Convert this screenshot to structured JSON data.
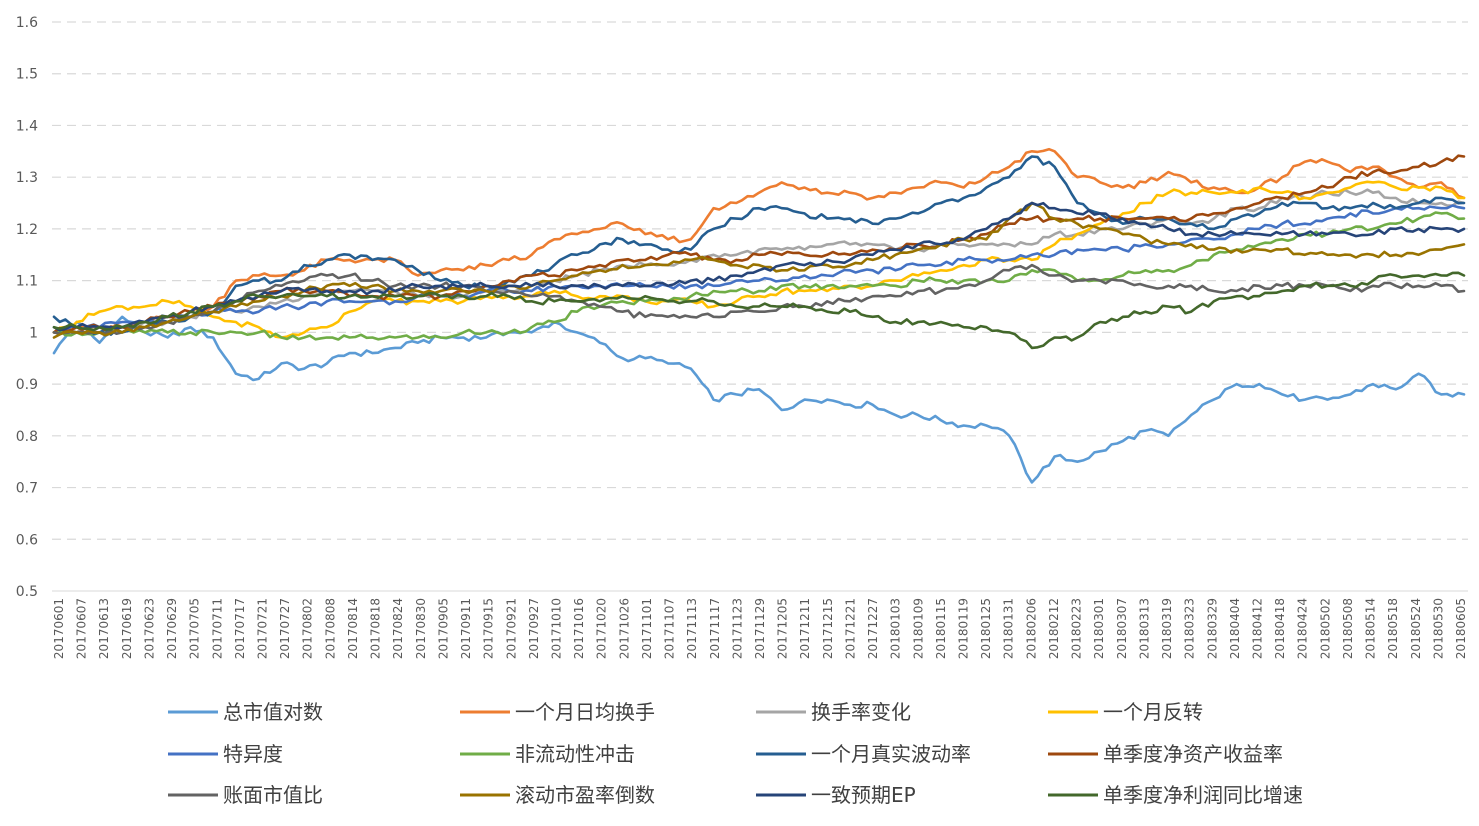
{
  "chart_data": {
    "type": "line",
    "title": "",
    "xlabel": "",
    "ylabel": "",
    "ylim": [
      0.5,
      1.6
    ],
    "yticks": [
      "0.5",
      "0.6",
      "0.7",
      "0.8",
      "0.9",
      "1",
      "1.1",
      "1.2",
      "1.3",
      "1.4",
      "1.5",
      "1.6"
    ],
    "grid": true,
    "legend_position": "bottom",
    "x_tick_labels": [
      "20170601",
      "20170607",
      "20170613",
      "20170619",
      "20170623",
      "20170629",
      "20170705",
      "20170711",
      "20170717",
      "20170721",
      "20170727",
      "20170802",
      "20170808",
      "20170814",
      "20170818",
      "20170824",
      "20170830",
      "20170905",
      "20170911",
      "20170915",
      "20170921",
      "20170927",
      "20171010",
      "20171016",
      "20171020",
      "20171026",
      "20171101",
      "20171107",
      "20171113",
      "20171117",
      "20171123",
      "20171129",
      "20171205",
      "20171211",
      "20171215",
      "20171221",
      "20171227",
      "20180103",
      "20180109",
      "20180115",
      "20180119",
      "20180125",
      "20180131",
      "20180206",
      "20180212",
      "20180223",
      "20180301",
      "20180307",
      "20180313",
      "20180319",
      "20180323",
      "20180329",
      "20180404",
      "20180412",
      "20180418",
      "20180424",
      "20180502",
      "20180508",
      "20180514",
      "20180518",
      "20180524",
      "20180530",
      "20180605"
    ],
    "series": [
      {
        "name": "总市值对数",
        "color": "#5B9BD5",
        "values": [
          0.96,
          1.02,
          0.98,
          1.03,
          1.0,
          0.99,
          1.01,
          0.99,
          0.92,
          0.91,
          0.94,
          0.93,
          0.94,
          0.96,
          0.96,
          0.97,
          0.98,
          0.99,
          0.99,
          0.99,
          1.0,
          1.0,
          1.02,
          1.0,
          0.98,
          0.95,
          0.95,
          0.94,
          0.93,
          0.87,
          0.88,
          0.89,
          0.85,
          0.87,
          0.87,
          0.86,
          0.86,
          0.84,
          0.84,
          0.83,
          0.82,
          0.82,
          0.8,
          0.71,
          0.76,
          0.75,
          0.77,
          0.79,
          0.81,
          0.8,
          0.84,
          0.87,
          0.9,
          0.9,
          0.88,
          0.87,
          0.87,
          0.88,
          0.9,
          0.89,
          0.92,
          0.88,
          0.88
        ]
      },
      {
        "name": "一个月日均换手",
        "color": "#ED7D31",
        "values": [
          1.0,
          1.01,
          1.01,
          1.01,
          1.02,
          1.03,
          1.04,
          1.05,
          1.1,
          1.11,
          1.11,
          1.12,
          1.14,
          1.14,
          1.14,
          1.14,
          1.11,
          1.12,
          1.12,
          1.13,
          1.14,
          1.15,
          1.18,
          1.19,
          1.2,
          1.21,
          1.19,
          1.18,
          1.18,
          1.24,
          1.25,
          1.27,
          1.29,
          1.28,
          1.27,
          1.27,
          1.26,
          1.27,
          1.28,
          1.29,
          1.28,
          1.3,
          1.32,
          1.35,
          1.35,
          1.3,
          1.29,
          1.28,
          1.29,
          1.31,
          1.29,
          1.28,
          1.27,
          1.28,
          1.3,
          1.33,
          1.33,
          1.31,
          1.32,
          1.3,
          1.28,
          1.29,
          1.26
        ]
      },
      {
        "name": "换手率变化",
        "color": "#A5A5A5",
        "values": [
          1.0,
          1.0,
          1.01,
          1.01,
          1.02,
          1.02,
          1.03,
          1.04,
          1.04,
          1.05,
          1.06,
          1.07,
          1.08,
          1.08,
          1.08,
          1.08,
          1.07,
          1.07,
          1.07,
          1.08,
          1.08,
          1.08,
          1.1,
          1.11,
          1.12,
          1.13,
          1.13,
          1.13,
          1.14,
          1.15,
          1.15,
          1.16,
          1.16,
          1.16,
          1.17,
          1.17,
          1.17,
          1.16,
          1.16,
          1.17,
          1.17,
          1.17,
          1.17,
          1.17,
          1.19,
          1.19,
          1.2,
          1.2,
          1.21,
          1.22,
          1.21,
          1.22,
          1.24,
          1.24,
          1.26,
          1.26,
          1.27,
          1.27,
          1.27,
          1.26,
          1.25,
          1.25,
          1.25
        ]
      },
      {
        "name": "一个月反转",
        "color": "#FFC000",
        "values": [
          1.0,
          1.02,
          1.04,
          1.05,
          1.05,
          1.06,
          1.05,
          1.03,
          1.02,
          1.01,
          0.99,
          1.0,
          1.01,
          1.04,
          1.06,
          1.06,
          1.06,
          1.06,
          1.06,
          1.07,
          1.07,
          1.07,
          1.08,
          1.07,
          1.07,
          1.07,
          1.06,
          1.06,
          1.06,
          1.05,
          1.06,
          1.07,
          1.08,
          1.08,
          1.08,
          1.09,
          1.09,
          1.1,
          1.11,
          1.12,
          1.13,
          1.14,
          1.14,
          1.14,
          1.17,
          1.19,
          1.21,
          1.23,
          1.25,
          1.27,
          1.27,
          1.27,
          1.27,
          1.28,
          1.27,
          1.26,
          1.27,
          1.28,
          1.29,
          1.28,
          1.28,
          1.28,
          1.26
        ]
      },
      {
        "name": "特异度",
        "color": "#4472C4",
        "values": [
          1.0,
          1.01,
          1.01,
          1.02,
          1.02,
          1.03,
          1.03,
          1.04,
          1.04,
          1.04,
          1.05,
          1.05,
          1.06,
          1.06,
          1.06,
          1.06,
          1.07,
          1.07,
          1.07,
          1.08,
          1.08,
          1.08,
          1.09,
          1.09,
          1.09,
          1.09,
          1.09,
          1.09,
          1.09,
          1.09,
          1.1,
          1.1,
          1.1,
          1.11,
          1.11,
          1.12,
          1.12,
          1.12,
          1.13,
          1.13,
          1.14,
          1.14,
          1.14,
          1.15,
          1.15,
          1.16,
          1.16,
          1.16,
          1.17,
          1.17,
          1.18,
          1.18,
          1.19,
          1.2,
          1.21,
          1.21,
          1.22,
          1.23,
          1.23,
          1.24,
          1.24,
          1.24,
          1.24
        ]
      },
      {
        "name": "非流动性冲击",
        "color": "#70AD47",
        "values": [
          1.0,
          1.0,
          1.0,
          1.0,
          1.0,
          1.0,
          1.0,
          1.0,
          1.0,
          1.0,
          0.99,
          0.99,
          0.99,
          0.99,
          0.99,
          0.99,
          0.99,
          0.99,
          1.0,
          1.0,
          1.0,
          1.01,
          1.02,
          1.04,
          1.05,
          1.06,
          1.06,
          1.06,
          1.07,
          1.08,
          1.08,
          1.08,
          1.09,
          1.09,
          1.09,
          1.09,
          1.09,
          1.09,
          1.1,
          1.1,
          1.1,
          1.1,
          1.1,
          1.12,
          1.12,
          1.1,
          1.1,
          1.11,
          1.12,
          1.12,
          1.13,
          1.15,
          1.16,
          1.17,
          1.18,
          1.19,
          1.19,
          1.2,
          1.2,
          1.21,
          1.22,
          1.23,
          1.22
        ]
      },
      {
        "name": "一个月真实波动率",
        "color": "#255E91",
        "values": [
          1.03,
          1.01,
          1.0,
          1.0,
          1.01,
          1.02,
          1.03,
          1.04,
          1.09,
          1.1,
          1.1,
          1.13,
          1.14,
          1.15,
          1.14,
          1.14,
          1.12,
          1.1,
          1.09,
          1.09,
          1.1,
          1.11,
          1.13,
          1.15,
          1.17,
          1.18,
          1.17,
          1.16,
          1.16,
          1.2,
          1.22,
          1.24,
          1.24,
          1.23,
          1.22,
          1.22,
          1.21,
          1.22,
          1.23,
          1.25,
          1.26,
          1.28,
          1.3,
          1.34,
          1.32,
          1.25,
          1.23,
          1.21,
          1.22,
          1.22,
          1.21,
          1.2,
          1.22,
          1.23,
          1.25,
          1.25,
          1.24,
          1.24,
          1.25,
          1.24,
          1.25,
          1.26,
          1.25
        ]
      },
      {
        "name": "单季度净资产收益率",
        "color": "#9E480E",
        "values": [
          1.0,
          1.01,
          1.01,
          1.01,
          1.02,
          1.03,
          1.04,
          1.05,
          1.06,
          1.07,
          1.08,
          1.08,
          1.08,
          1.07,
          1.07,
          1.07,
          1.07,
          1.07,
          1.08,
          1.09,
          1.1,
          1.11,
          1.11,
          1.12,
          1.13,
          1.14,
          1.14,
          1.15,
          1.15,
          1.14,
          1.14,
          1.15,
          1.15,
          1.15,
          1.15,
          1.15,
          1.16,
          1.16,
          1.17,
          1.17,
          1.18,
          1.19,
          1.21,
          1.22,
          1.22,
          1.22,
          1.22,
          1.22,
          1.22,
          1.22,
          1.22,
          1.23,
          1.24,
          1.25,
          1.26,
          1.27,
          1.28,
          1.3,
          1.31,
          1.31,
          1.32,
          1.33,
          1.34
        ]
      },
      {
        "name": "账面市值比",
        "color": "#636363",
        "values": [
          1.0,
          1.0,
          1.0,
          1.0,
          1.01,
          1.02,
          1.03,
          1.04,
          1.06,
          1.08,
          1.09,
          1.1,
          1.11,
          1.11,
          1.1,
          1.09,
          1.09,
          1.09,
          1.09,
          1.08,
          1.08,
          1.07,
          1.07,
          1.06,
          1.05,
          1.04,
          1.03,
          1.03,
          1.03,
          1.03,
          1.04,
          1.04,
          1.05,
          1.05,
          1.06,
          1.06,
          1.07,
          1.07,
          1.08,
          1.08,
          1.09,
          1.1,
          1.12,
          1.13,
          1.11,
          1.1,
          1.1,
          1.1,
          1.09,
          1.09,
          1.09,
          1.08,
          1.08,
          1.09,
          1.09,
          1.09,
          1.09,
          1.08,
          1.09,
          1.09,
          1.09,
          1.09,
          1.08
        ]
      },
      {
        "name": "滚动市盈率倒数",
        "color": "#997300",
        "values": [
          0.99,
          1.0,
          1.0,
          1.0,
          1.01,
          1.02,
          1.03,
          1.04,
          1.05,
          1.06,
          1.07,
          1.08,
          1.09,
          1.09,
          1.09,
          1.08,
          1.08,
          1.08,
          1.08,
          1.08,
          1.09,
          1.09,
          1.1,
          1.11,
          1.12,
          1.13,
          1.13,
          1.13,
          1.14,
          1.14,
          1.13,
          1.13,
          1.12,
          1.12,
          1.13,
          1.13,
          1.14,
          1.15,
          1.16,
          1.17,
          1.18,
          1.18,
          1.22,
          1.25,
          1.22,
          1.21,
          1.2,
          1.19,
          1.18,
          1.17,
          1.17,
          1.16,
          1.16,
          1.16,
          1.16,
          1.15,
          1.15,
          1.15,
          1.15,
          1.15,
          1.15,
          1.16,
          1.17
        ]
      },
      {
        "name": "一致预期EP",
        "color": "#264478",
        "values": [
          1.01,
          1.01,
          1.01,
          1.01,
          1.02,
          1.03,
          1.04,
          1.05,
          1.06,
          1.07,
          1.08,
          1.08,
          1.08,
          1.08,
          1.08,
          1.08,
          1.09,
          1.09,
          1.09,
          1.09,
          1.09,
          1.09,
          1.09,
          1.09,
          1.09,
          1.09,
          1.09,
          1.09,
          1.1,
          1.1,
          1.11,
          1.12,
          1.13,
          1.13,
          1.14,
          1.14,
          1.15,
          1.16,
          1.17,
          1.17,
          1.18,
          1.2,
          1.22,
          1.25,
          1.24,
          1.23,
          1.23,
          1.22,
          1.21,
          1.2,
          1.19,
          1.19,
          1.19,
          1.19,
          1.19,
          1.19,
          1.19,
          1.19,
          1.19,
          1.2,
          1.2,
          1.2,
          1.2
        ]
      },
      {
        "name": "单季度净利润同比增速",
        "color": "#43682B",
        "values": [
          1.01,
          1.01,
          1.01,
          1.01,
          1.02,
          1.03,
          1.04,
          1.05,
          1.06,
          1.07,
          1.07,
          1.07,
          1.07,
          1.07,
          1.07,
          1.07,
          1.07,
          1.07,
          1.07,
          1.07,
          1.07,
          1.06,
          1.06,
          1.06,
          1.06,
          1.07,
          1.07,
          1.06,
          1.06,
          1.06,
          1.05,
          1.05,
          1.05,
          1.05,
          1.04,
          1.04,
          1.03,
          1.02,
          1.02,
          1.02,
          1.01,
          1.01,
          1.0,
          0.97,
          0.99,
          0.99,
          1.02,
          1.03,
          1.04,
          1.05,
          1.04,
          1.06,
          1.07,
          1.07,
          1.08,
          1.09,
          1.09,
          1.09,
          1.1,
          1.11,
          1.11,
          1.11,
          1.11
        ]
      }
    ]
  }
}
